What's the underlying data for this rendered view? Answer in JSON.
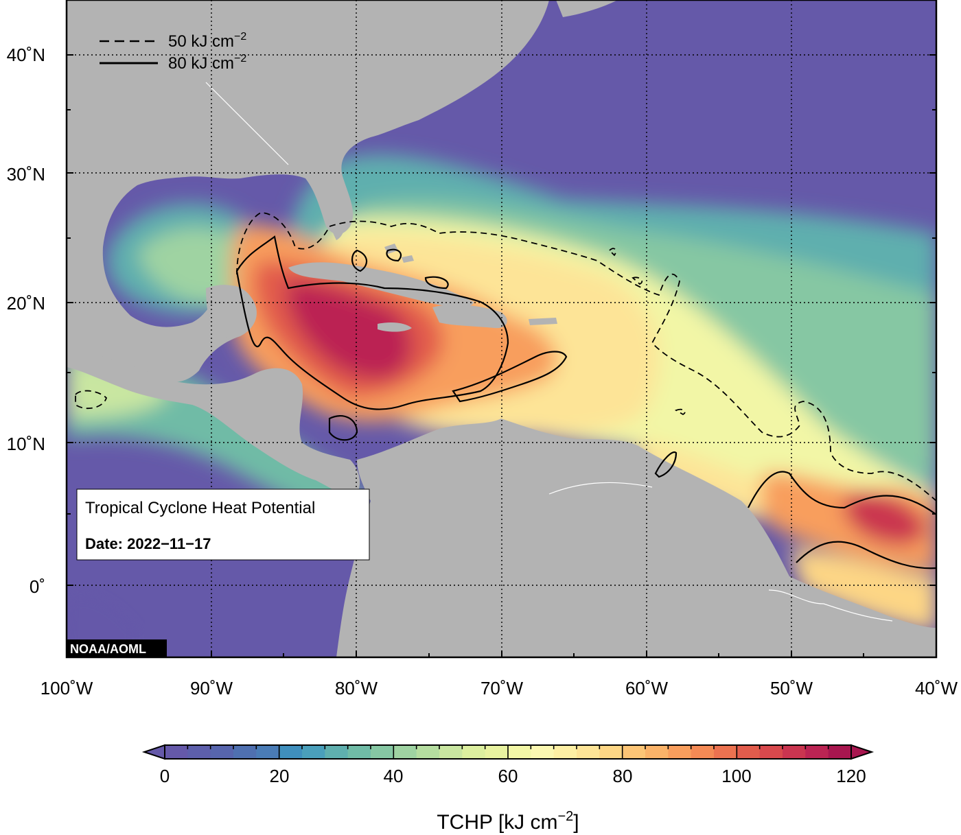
{
  "map": {
    "title": "Tropical Cyclone Heat Potential",
    "date_label": "Date: 2022−11−17",
    "credit": "NOAA/AOML",
    "extent": {
      "lon": [
        -100,
        -40
      ],
      "lat": [
        -5,
        45
      ]
    },
    "lon_ticks": [
      "100˚W",
      "90˚W",
      "80˚W",
      "70˚W",
      "60˚W",
      "50˚W",
      "40˚W"
    ],
    "lat_ticks": [
      "40˚N",
      "30˚N",
      "20˚N",
      "10˚N",
      "0˚"
    ],
    "contour_legend": [
      {
        "style": "dashed",
        "label": "50 kJ cm",
        "sup": "−2"
      },
      {
        "style": "solid",
        "label": "80 kJ cm",
        "sup": "−2"
      }
    ],
    "land_color": "#b3b3b3",
    "ocean_low_color": "#6559a9"
  },
  "colorbar": {
    "ticks": [
      "0",
      "20",
      "40",
      "60",
      "80",
      "100",
      "120"
    ],
    "title": "TCHP [kJ cm",
    "title_sup": "−2",
    "title_end": "]",
    "min": 0,
    "max": 120,
    "colors": [
      "#6559a9",
      "#5d5fab",
      "#5765ad",
      "#4f70b0",
      "#4a7cb6",
      "#3f8fbd",
      "#4a9fbb",
      "#5fafae",
      "#70bba6",
      "#86c7a3",
      "#9fd3a2",
      "#b5dda0",
      "#c9e6a1",
      "#dcef9f",
      "#e8f2a0",
      "#f2f6a6",
      "#fbf7b1",
      "#fdefa4",
      "#fde497",
      "#fdd685",
      "#fdc576",
      "#fbb369",
      "#f89e5d",
      "#f48a55",
      "#ec7250",
      "#e25c4c",
      "#d8494d",
      "#ca3550",
      "#bb2453",
      "#a8164f"
    ]
  }
}
